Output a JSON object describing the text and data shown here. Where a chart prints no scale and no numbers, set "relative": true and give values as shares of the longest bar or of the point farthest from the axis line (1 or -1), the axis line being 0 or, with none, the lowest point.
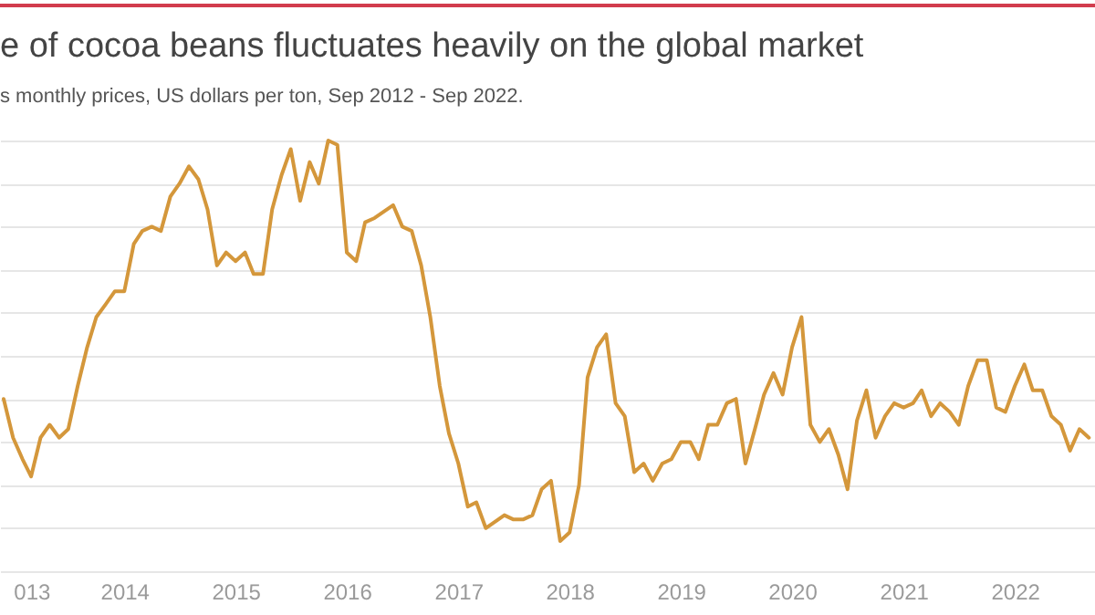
{
  "chart_data": {
    "type": "line",
    "title": "e of cocoa beans fluctuates heavily on the global market",
    "subtitle": "s monthly prices, US dollars per ton, Sep 2012 - Sep 2022.",
    "relative": true,
    "grid": "y",
    "x": [
      "2012-12",
      "2013-01",
      "2013-02",
      "2013-03",
      "2013-04",
      "2013-05",
      "2013-06",
      "2013-07",
      "2013-08",
      "2013-09",
      "2013-10",
      "2013-11",
      "2013-12",
      "2014-01",
      "2014-02",
      "2014-03",
      "2014-04",
      "2014-05",
      "2014-06",
      "2014-07",
      "2014-08",
      "2014-09",
      "2014-10",
      "2014-11",
      "2014-12",
      "2015-01",
      "2015-02",
      "2015-03",
      "2015-04",
      "2015-05",
      "2015-06",
      "2015-07",
      "2015-08",
      "2015-09",
      "2015-10",
      "2015-11",
      "2015-12",
      "2016-01",
      "2016-02",
      "2016-03",
      "2016-04",
      "2016-06",
      "2016-07",
      "2016-08",
      "2016-09",
      "2016-10",
      "2016-11",
      "2016-12",
      "2017-01",
      "2017-02",
      "2017-03",
      "2017-04",
      "2017-06",
      "2017-07",
      "2017-08",
      "2017-09",
      "2017-10",
      "2017-11",
      "2017-12",
      "2018-01",
      "2018-02",
      "2018-03",
      "2018-04",
      "2018-05",
      "2018-06",
      "2018-07",
      "2018-08",
      "2018-09",
      "2018-10",
      "2018-11",
      "2018-12",
      "2019-01",
      "2019-02",
      "2019-03",
      "2019-04",
      "2019-05",
      "2019-06",
      "2019-07",
      "2019-08",
      "2019-09",
      "2019-10",
      "2019-11",
      "2019-12",
      "2020-01",
      "2020-02",
      "2020-03",
      "2020-04",
      "2020-05",
      "2020-06",
      "2020-07",
      "2020-08",
      "2020-09",
      "2020-10",
      "2020-11",
      "2020-12",
      "2021-01",
      "2021-02",
      "2021-03",
      "2021-04",
      "2021-05",
      "2021-06",
      "2021-07",
      "2021-08",
      "2021-09",
      "2021-10",
      "2021-11",
      "2021-12",
      "2022-01",
      "2022-02",
      "2022-03",
      "2022-04",
      "2022-05",
      "2022-06",
      "2022-07",
      "2022-08",
      "2022-09"
    ],
    "xlim": [
      "2012-11-19",
      "2022-09-21"
    ],
    "xticks": [
      {
        "value": "2013",
        "label": "013"
      },
      "2014",
      "2015",
      "2016",
      "2017",
      "2018",
      "2019",
      "2020",
      "2021",
      "2022"
    ],
    "series": [
      {
        "color": "#d4973b",
        "values": [
          0.4,
          0.31,
          0.26,
          0.22,
          0.31,
          0.34,
          0.31,
          0.33,
          0.43,
          0.52,
          0.59,
          0.62,
          0.65,
          0.65,
          0.76,
          0.79,
          0.8,
          0.79,
          0.87,
          0.9,
          0.94,
          0.91,
          0.84,
          0.71,
          0.74,
          0.72,
          0.74,
          0.69,
          0.69,
          0.84,
          0.92,
          0.98,
          0.86,
          0.95,
          0.9,
          1.0,
          0.99,
          0.74,
          0.72,
          0.81,
          0.82,
          0.85,
          0.8,
          0.79,
          0.71,
          0.59,
          0.43,
          0.32,
          0.25,
          0.15,
          0.16,
          0.1,
          0.13,
          0.12,
          0.12,
          0.13,
          0.19,
          0.21,
          0.07,
          0.09,
          0.2,
          0.45,
          0.52,
          0.55,
          0.39,
          0.36,
          0.23,
          0.25,
          0.21,
          0.25,
          0.26,
          0.3,
          0.3,
          0.26,
          0.34,
          0.34,
          0.39,
          0.4,
          0.25,
          0.33,
          0.41,
          0.46,
          0.41,
          0.52,
          0.59,
          0.34,
          0.3,
          0.33,
          0.27,
          0.19,
          0.35,
          0.42,
          0.31,
          0.36,
          0.39,
          0.38,
          0.39,
          0.42,
          0.36,
          0.39,
          0.37,
          0.34,
          0.43,
          0.49,
          0.49,
          0.38,
          0.37,
          0.43,
          0.48,
          0.42,
          0.42,
          0.36,
          0.34,
          0.28,
          0.33,
          0.31
        ]
      }
    ]
  }
}
